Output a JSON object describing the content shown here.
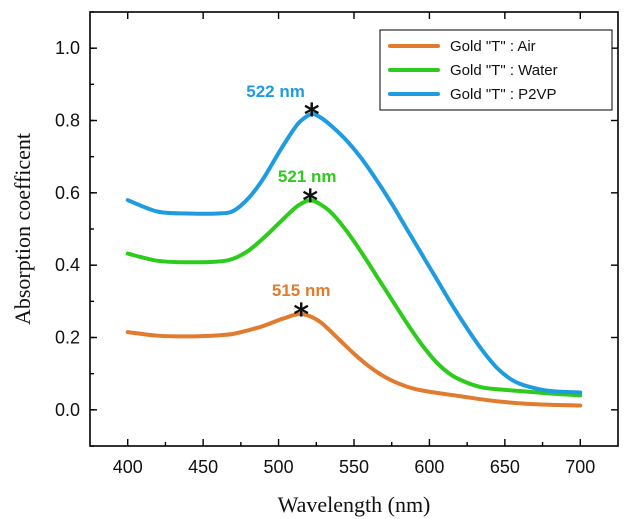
{
  "chart_data": {
    "type": "line",
    "xlabel": "Wavelength (nm)",
    "ylabel": "Absorption coefficent",
    "xlim": [
      375,
      725
    ],
    "ylim": [
      -0.1,
      1.1
    ],
    "xticks": [
      400,
      450,
      500,
      550,
      600,
      650,
      700
    ],
    "yticks": [
      0.0,
      0.2,
      0.4,
      0.6,
      0.8,
      1.0
    ],
    "xtick_labels": [
      "400",
      "450",
      "500",
      "550",
      "600",
      "650",
      "700"
    ],
    "ytick_labels": [
      "0.0",
      "0.2",
      "0.4",
      "0.6",
      "0.8",
      "1.0"
    ],
    "grid": false,
    "legend_position": "top-right",
    "series": [
      {
        "name": "Gold \"T\" : Air",
        "color": "#e07b2f",
        "x": [
          400,
          420,
          440,
          460,
          470,
          480,
          490,
          500,
          505,
          510,
          515,
          520,
          525,
          530,
          540,
          550,
          560,
          570,
          580,
          590,
          600,
          620,
          640,
          660,
          680,
          700
        ],
        "y": [
          0.215,
          0.205,
          0.203,
          0.206,
          0.21,
          0.22,
          0.232,
          0.248,
          0.255,
          0.262,
          0.265,
          0.26,
          0.25,
          0.235,
          0.195,
          0.155,
          0.12,
          0.092,
          0.072,
          0.058,
          0.05,
          0.038,
          0.026,
          0.018,
          0.014,
          0.012
        ]
      },
      {
        "name": "Gold \"T\" : Water",
        "color": "#2dcc1c",
        "x": [
          400,
          420,
          440,
          460,
          470,
          480,
          490,
          500,
          510,
          515,
          521,
          527,
          535,
          545,
          555,
          565,
          575,
          585,
          595,
          605,
          615,
          625,
          635,
          645,
          660,
          680,
          700
        ],
        "y": [
          0.432,
          0.412,
          0.408,
          0.41,
          0.418,
          0.44,
          0.475,
          0.515,
          0.555,
          0.57,
          0.58,
          0.57,
          0.545,
          0.495,
          0.435,
          0.37,
          0.305,
          0.24,
          0.18,
          0.13,
          0.095,
          0.075,
          0.062,
          0.057,
          0.052,
          0.045,
          0.04
        ]
      },
      {
        "name": "Gold \"T\" : P2VP",
        "color": "#1f9be0",
        "x": [
          400,
          420,
          440,
          460,
          470,
          480,
          490,
          500,
          510,
          515,
          522,
          528,
          535,
          545,
          555,
          565,
          575,
          585,
          595,
          605,
          615,
          625,
          635,
          645,
          655,
          665,
          680,
          700
        ],
        "y": [
          0.58,
          0.548,
          0.543,
          0.543,
          0.55,
          0.585,
          0.64,
          0.71,
          0.775,
          0.8,
          0.818,
          0.808,
          0.785,
          0.745,
          0.695,
          0.635,
          0.57,
          0.5,
          0.43,
          0.36,
          0.29,
          0.225,
          0.165,
          0.115,
          0.082,
          0.065,
          0.052,
          0.048
        ]
      }
    ],
    "annotations": [
      {
        "label": "515 nm",
        "x": 515,
        "y": 0.265,
        "color": "#e07b2f",
        "marker": "*",
        "label_x": 515,
        "label_y": 0.315
      },
      {
        "label": "521 nm",
        "x": 521,
        "y": 0.58,
        "color": "#2dcc1c",
        "marker": "*",
        "label_x": 519,
        "label_y": 0.63
      },
      {
        "label": "522 nm",
        "x": 522,
        "y": 0.818,
        "color": "#1f9be0",
        "marker": "*",
        "label_x": 498,
        "label_y": 0.865
      }
    ]
  }
}
